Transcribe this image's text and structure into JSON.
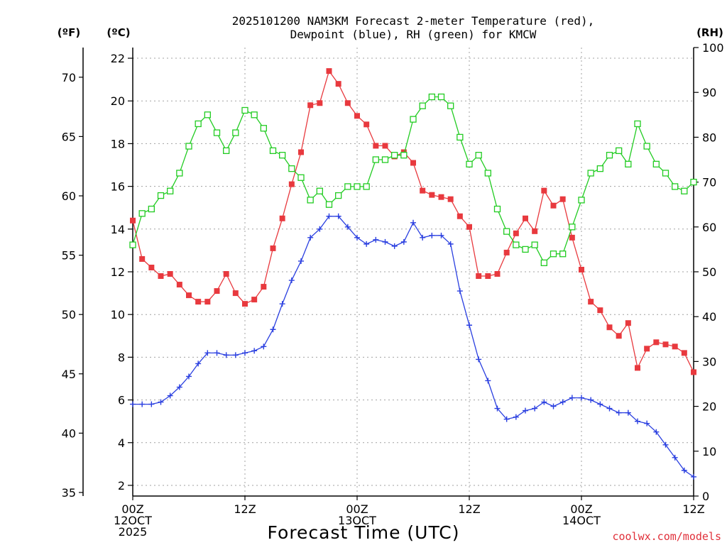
{
  "chart_data": {
    "type": "line",
    "title_line1": "2025101200 NAM3KM Forecast 2-meter Temperature (red),",
    "title_line2": "Dewpoint (blue), RH (green) for KMCW",
    "xlabel": "Forecast Time (UTC)",
    "credit": "coolwx.com/models",
    "units": {
      "fahrenheit": "(ºF)",
      "celsius": "(ºC)",
      "rh": "(RH)"
    },
    "x_range_hours": [
      0,
      60
    ],
    "celsius_range": [
      1.5,
      22.5
    ],
    "rh_range": [
      0,
      100
    ],
    "fahrenheit_ticks": [
      {
        "label": "35",
        "value": 35
      },
      {
        "label": "40",
        "value": 40
      },
      {
        "label": "45",
        "value": 45
      },
      {
        "label": "50",
        "value": 50
      },
      {
        "label": "55",
        "value": 55
      },
      {
        "label": "60",
        "value": 60
      },
      {
        "label": "65",
        "value": 65
      },
      {
        "label": "70",
        "value": 70
      }
    ],
    "celsius_ticks": [
      {
        "label": "2",
        "value": 2
      },
      {
        "label": "4",
        "value": 4
      },
      {
        "label": "6",
        "value": 6
      },
      {
        "label": "8",
        "value": 8
      },
      {
        "label": "10",
        "value": 10
      },
      {
        "label": "12",
        "value": 12
      },
      {
        "label": "14",
        "value": 14
      },
      {
        "label": "16",
        "value": 16
      },
      {
        "label": "18",
        "value": 18
      },
      {
        "label": "20",
        "value": 20
      },
      {
        "label": "22",
        "value": 22
      }
    ],
    "rh_ticks": [
      {
        "label": "0",
        "value": 0
      },
      {
        "label": "10",
        "value": 10
      },
      {
        "label": "20",
        "value": 20
      },
      {
        "label": "30",
        "value": 30
      },
      {
        "label": "40",
        "value": 40
      },
      {
        "label": "50",
        "value": 50
      },
      {
        "label": "60",
        "value": 60
      },
      {
        "label": "70",
        "value": 70
      },
      {
        "label": "80",
        "value": 80
      },
      {
        "label": "90",
        "value": 90
      },
      {
        "label": "100",
        "value": 100
      }
    ],
    "x_ticks": [
      {
        "hour": 0,
        "lines": [
          "00Z",
          "12OCT",
          "2025"
        ]
      },
      {
        "hour": 12,
        "lines": [
          "12Z"
        ]
      },
      {
        "hour": 24,
        "lines": [
          "00Z",
          "13OCT"
        ]
      },
      {
        "hour": 36,
        "lines": [
          "12Z"
        ]
      },
      {
        "hour": 48,
        "lines": [
          "00Z",
          "14OCT"
        ]
      },
      {
        "hour": 60,
        "lines": [
          "12Z"
        ]
      }
    ],
    "series": [
      {
        "name": "2-meter Temperature",
        "axis": "celsius",
        "color": "#e8393e",
        "marker": "filled-square",
        "x": [
          0,
          1,
          2,
          3,
          4,
          5,
          6,
          7,
          8,
          9,
          10,
          11,
          12,
          13,
          14,
          15,
          16,
          17,
          18,
          19,
          20,
          21,
          22,
          23,
          24,
          25,
          26,
          27,
          28,
          29,
          30,
          31,
          32,
          33,
          34,
          35,
          36,
          37,
          38,
          39,
          40,
          41,
          42,
          43,
          44,
          45,
          46,
          47,
          48,
          49,
          50,
          51,
          52,
          53,
          54,
          55,
          56,
          57,
          58,
          59,
          60
        ],
        "values": [
          14.4,
          12.6,
          12.2,
          11.8,
          11.9,
          11.4,
          10.9,
          10.6,
          10.6,
          11.1,
          11.9,
          11.0,
          10.5,
          10.7,
          11.3,
          13.1,
          14.5,
          16.1,
          17.6,
          19.8,
          19.9,
          21.4,
          20.8,
          19.9,
          19.3,
          18.9,
          17.9,
          17.9,
          17.4,
          17.6,
          17.1,
          15.8,
          15.6,
          15.5,
          15.4,
          14.6,
          14.1,
          11.8,
          11.8,
          11.9,
          12.9,
          13.8,
          14.5,
          13.9,
          15.8,
          15.1,
          15.4,
          13.6,
          12.1,
          10.6,
          10.2,
          9.4,
          9.0,
          9.6,
          7.5,
          8.4,
          8.7,
          8.6,
          8.5,
          8.2,
          7.3
        ]
      },
      {
        "name": "Dewpoint",
        "axis": "celsius",
        "color": "#2a3fe0",
        "marker": "plus",
        "x": [
          0,
          1,
          2,
          3,
          4,
          5,
          6,
          7,
          8,
          9,
          10,
          11,
          12,
          13,
          14,
          15,
          16,
          17,
          18,
          19,
          20,
          21,
          22,
          23,
          24,
          25,
          26,
          27,
          28,
          29,
          30,
          31,
          32,
          33,
          34,
          35,
          36,
          37,
          38,
          39,
          40,
          41,
          42,
          43,
          44,
          45,
          46,
          47,
          48,
          49,
          50,
          51,
          52,
          53,
          54,
          55,
          56,
          57,
          58,
          59,
          60
        ],
        "values": [
          5.8,
          5.8,
          5.8,
          5.9,
          6.2,
          6.6,
          7.1,
          7.7,
          8.2,
          8.2,
          8.1,
          8.1,
          8.2,
          8.3,
          8.5,
          9.3,
          10.5,
          11.6,
          12.5,
          13.6,
          14.0,
          14.6,
          14.6,
          14.1,
          13.6,
          13.3,
          13.5,
          13.4,
          13.2,
          13.4,
          14.3,
          13.6,
          13.7,
          13.7,
          13.3,
          11.1,
          9.5,
          7.9,
          6.9,
          5.6,
          5.1,
          5.2,
          5.5,
          5.6,
          5.9,
          5.7,
          5.9,
          6.1,
          6.1,
          6.0,
          5.8,
          5.6,
          5.4,
          5.4,
          5.0,
          4.9,
          4.5,
          3.9,
          3.3,
          2.7,
          2.4
        ]
      },
      {
        "name": "RH",
        "axis": "rh",
        "color": "#22cc22",
        "marker": "open-square",
        "x": [
          0,
          1,
          2,
          3,
          4,
          5,
          6,
          7,
          8,
          9,
          10,
          11,
          12,
          13,
          14,
          15,
          16,
          17,
          18,
          19,
          20,
          21,
          22,
          23,
          24,
          25,
          26,
          27,
          28,
          29,
          30,
          31,
          32,
          33,
          34,
          35,
          36,
          37,
          38,
          39,
          40,
          41,
          42,
          43,
          44,
          45,
          46,
          47,
          48,
          49,
          50,
          51,
          52,
          53,
          54,
          55,
          56,
          57,
          58,
          59,
          60
        ],
        "values": [
          56,
          63,
          64,
          67,
          68,
          72,
          78,
          83,
          85,
          81,
          77,
          81,
          86,
          85,
          82,
          77,
          76,
          73,
          71,
          66,
          68,
          65,
          67,
          69,
          69,
          69,
          75,
          75,
          76,
          76,
          84,
          87,
          89,
          89,
          87,
          80,
          74,
          76,
          72,
          64,
          59,
          56,
          55,
          56,
          52,
          54,
          54,
          60,
          66,
          72,
          73,
          76,
          77,
          74,
          83,
          78,
          74,
          72,
          69,
          68,
          70
        ]
      }
    ]
  }
}
